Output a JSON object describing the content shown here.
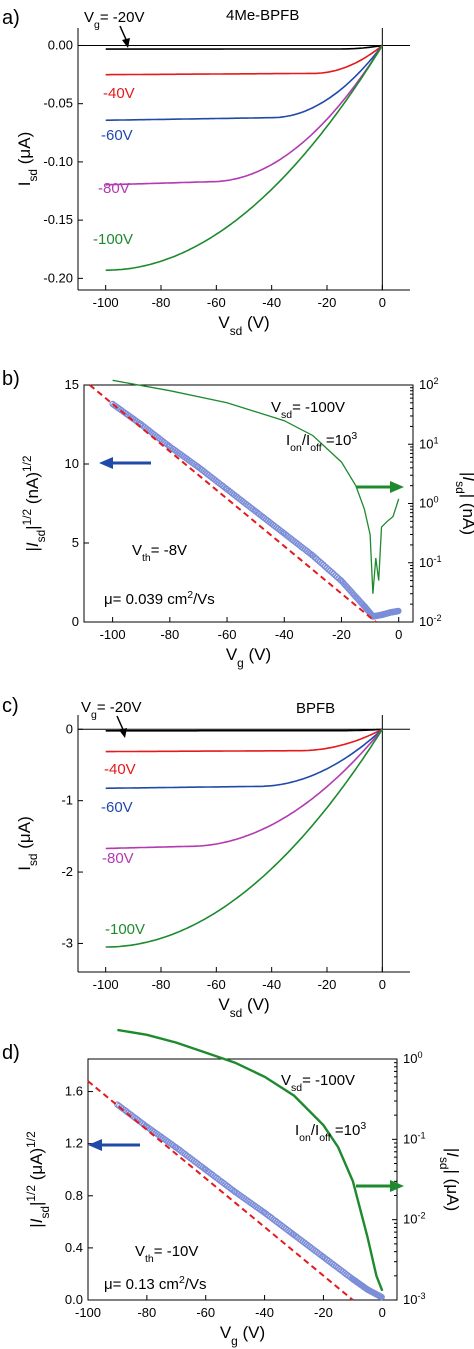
{
  "colors": {
    "black": "#000000",
    "red": "#e41a1c",
    "blue": "#1f4aa8",
    "magenta": "#b23ab2",
    "green": "#1e8a2e",
    "fit": "#e41a1c",
    "marker": "#7c8ed8",
    "arrow_left": "#1f4aa8",
    "arrow_right": "#1e8a2e"
  },
  "chart_data": [
    {
      "panel": "a)",
      "type": "line",
      "title": "4Me-BPFB",
      "xlabel": "Vsd (V)",
      "ylabel": "Isd (μA)",
      "xlim": [
        -110,
        10
      ],
      "ylim": [
        -0.21,
        0.015
      ],
      "xticks": [
        -100,
        -80,
        -60,
        -40,
        -20,
        0
      ],
      "yticks": [
        0.0,
        -0.05,
        -0.1,
        -0.15,
        -0.2
      ],
      "ytick_labels": [
        "0.00",
        "-0.05",
        "-0.10",
        "-0.15",
        "-0.20"
      ],
      "grid": false,
      "series": [
        {
          "name": "Vg= -20V",
          "color": "black",
          "sat": -0.003,
          "vd": 15
        },
        {
          "name": "-40V",
          "color": "red",
          "sat": -0.024,
          "vd": 25
        },
        {
          "name": "-60V",
          "color": "blue",
          "sat": -0.062,
          "vd": 40
        },
        {
          "name": "-80V",
          "color": "magenta",
          "sat": -0.117,
          "vd": 62
        },
        {
          "name": "-100V",
          "color": "green",
          "sat": -0.193,
          "vd": 100
        }
      ]
    },
    {
      "panel": "b)",
      "type": "scatter",
      "xlabel": "Vg (V)",
      "ylabel": "|Isd|1/2 (nA)1/2",
      "ylabel_right": "|Isd| (nA)",
      "xlim": [
        -110,
        5
      ],
      "ylim": [
        0,
        15
      ],
      "yticks": [
        0,
        5,
        10,
        15
      ],
      "xticks": [
        -100,
        -80,
        -60,
        -40,
        -20,
        0
      ],
      "y2_decades": [
        -2,
        2
      ],
      "y2tick_labels": [
        "10-2",
        "10-1",
        "100",
        "101",
        "102"
      ],
      "annotations": [
        "Vsd= -100V",
        "Ion/Ioff =103",
        "Vth= -8V",
        "μ= 0.039 cm2/Vs"
      ],
      "sqrt_series": {
        "x": [
          -100,
          -90,
          -80,
          -70,
          -60,
          -50,
          -40,
          -30,
          -20,
          -12,
          -9,
          -6,
          -3,
          0
        ],
        "y": [
          13.8,
          12.5,
          11.1,
          9.8,
          8.4,
          7.0,
          5.6,
          4.2,
          2.6,
          1.0,
          0.35,
          0.45,
          0.6,
          0.7
        ]
      },
      "fit_line": {
        "x": [
          -108,
          -8
        ],
        "y": [
          15.0,
          0.0
        ]
      },
      "log_series": {
        "x": [
          -100,
          -80,
          -60,
          -40,
          -30,
          -20,
          -15,
          -12,
          -10,
          -9,
          -8,
          -7,
          -6,
          -4,
          -2,
          0
        ],
        "y": [
          120,
          80,
          50,
          25,
          14,
          5,
          2,
          0.8,
          0.3,
          0.03,
          0.12,
          0.05,
          0.4,
          0.5,
          0.6,
          1.2
        ]
      }
    },
    {
      "panel": "c)",
      "type": "line",
      "title": "BPFB",
      "xlabel": "Vsd (V)",
      "ylabel": "Isd (μA)",
      "xlim": [
        -110,
        10
      ],
      "ylim": [
        -3.4,
        0.2
      ],
      "xticks": [
        -100,
        -80,
        -60,
        -40,
        -20,
        0
      ],
      "yticks": [
        0,
        -1,
        -2,
        -3
      ],
      "ytick_labels": [
        "0",
        "-1",
        "-2",
        "-3"
      ],
      "grid": false,
      "series": [
        {
          "name": "Vg= -20V",
          "color": "black",
          "sat": -0.02,
          "vd": 15
        },
        {
          "name": "-40V",
          "color": "red",
          "sat": -0.3,
          "vd": 30
        },
        {
          "name": "-60V",
          "color": "blue",
          "sat": -0.8,
          "vd": 45
        },
        {
          "name": "-80V",
          "color": "magenta",
          "sat": -1.64,
          "vd": 70
        },
        {
          "name": "-100V",
          "color": "green",
          "sat": -3.05,
          "vd": 100
        }
      ]
    },
    {
      "panel": "d)",
      "type": "scatter",
      "xlabel": "Vg (V)",
      "ylabel": "|Isd|1/2 (μA)1/2",
      "ylabel_right": "|Isd| (μA)",
      "xlim": [
        -100,
        5
      ],
      "ylim": [
        0,
        1.85
      ],
      "yticks": [
        0.0,
        0.4,
        0.8,
        1.2,
        1.6
      ],
      "ytick_labels": [
        "0.0",
        "0.4",
        "0.8",
        "1.2",
        "1.6"
      ],
      "xticks": [
        -100,
        -80,
        -60,
        -40,
        -20,
        0
      ],
      "y2_decades": [
        -3,
        0
      ],
      "y2tick_labels": [
        "10-3",
        "10-2",
        "10-1",
        "100"
      ],
      "annotations": [
        "Vsd= -100V",
        "Ion/Ioff =103",
        "Vth= -10V",
        "μ= 0.13 cm2/Vs"
      ],
      "sqrt_series": {
        "x": [
          -90,
          -80,
          -70,
          -60,
          -50,
          -40,
          -30,
          -20,
          -10,
          -5,
          0
        ],
        "y": [
          1.5,
          1.33,
          1.17,
          1.0,
          0.83,
          0.67,
          0.5,
          0.33,
          0.16,
          0.08,
          0.02
        ]
      },
      "fit_line": {
        "x": [
          -100,
          -10
        ],
        "y": [
          1.68,
          0.0
        ]
      },
      "log_series": {
        "x": [
          -90,
          -80,
          -70,
          -60,
          -50,
          -40,
          -30,
          -20,
          -15,
          -10,
          -5,
          -2,
          0
        ],
        "y": [
          2.3,
          2.0,
          1.6,
          1.2,
          0.9,
          0.6,
          0.35,
          0.15,
          0.08,
          0.03,
          0.006,
          0.002,
          0.0013
        ]
      }
    }
  ]
}
